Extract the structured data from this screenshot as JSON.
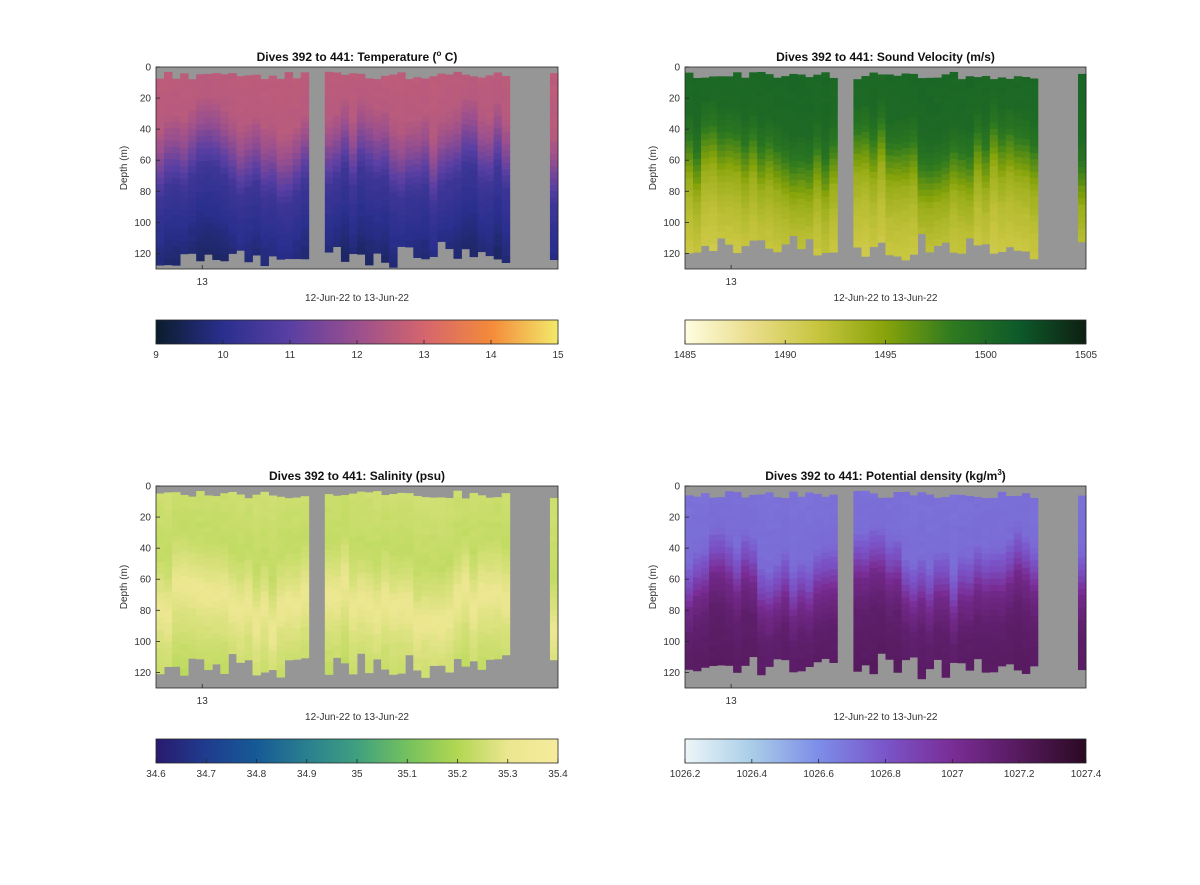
{
  "chart_data": [
    {
      "type": "heatmap",
      "title": "Dives 392 to 441: Temperature (",
      "title_sup": "o",
      "title_end": " C)",
      "xlabel": "12-Jun-22 to 13-Jun-22",
      "ylabel": "Depth (m)",
      "x_tick_labels": [
        "13"
      ],
      "y_ticks": [
        0,
        20,
        40,
        60,
        80,
        100,
        120
      ],
      "ylim": [
        0,
        130
      ],
      "colorbar": {
        "min": 9,
        "max": 15,
        "ticks": [
          "9",
          "10",
          "11",
          "12",
          "13",
          "14",
          "15"
        ],
        "colors": [
          "#0b1c2c",
          "#2a2f8e",
          "#5a3fa3",
          "#9a4f8e",
          "#d4656e",
          "#f48a3a",
          "#f2ea6a"
        ]
      },
      "gaps": [
        [
          0.3825,
          0.42
        ],
        [
          0.8825,
          0.98
        ]
      ],
      "surface_value": 12.6,
      "profile": [
        [
          0,
          12.6
        ],
        [
          30,
          12.5
        ],
        [
          45,
          12.0
        ],
        [
          60,
          11.2
        ],
        [
          75,
          10.4
        ],
        [
          95,
          10.1
        ],
        [
          130,
          9.6
        ]
      ],
      "bottom_depth": 120
    },
    {
      "type": "heatmap",
      "title": "Dives 392 to 441: Sound Velocity (m/s)",
      "title_sup": "",
      "title_end": "",
      "xlabel": "12-Jun-22 to 13-Jun-22",
      "ylabel": "Depth (m)",
      "x_tick_labels": [
        "13"
      ],
      "y_ticks": [
        0,
        20,
        40,
        60,
        80,
        100,
        120
      ],
      "ylim": [
        0,
        130
      ],
      "colorbar": {
        "min": 1485,
        "max": 1505,
        "ticks": [
          "1485",
          "1490",
          "1495",
          "1500",
          "1505"
        ],
        "colors": [
          "#fffde0",
          "#e9dd8a",
          "#c7c53e",
          "#86a30a",
          "#2f7a1f",
          "#0d5a2a",
          "#0e1f12"
        ]
      },
      "gaps": [
        [
          0.3825,
          0.42
        ],
        [
          0.8825,
          0.98
        ]
      ],
      "surface_value": 1500.3,
      "profile": [
        [
          0,
          1500.3
        ],
        [
          30,
          1500.1
        ],
        [
          45,
          1499.0
        ],
        [
          60,
          1496.5
        ],
        [
          75,
          1494.0
        ],
        [
          95,
          1492.5
        ],
        [
          130,
          1491.0
        ]
      ],
      "bottom_depth": 115
    },
    {
      "type": "heatmap",
      "title": "Dives 392 to 441: Salinity (psu)",
      "title_sup": "",
      "title_end": "",
      "xlabel": "12-Jun-22 to 13-Jun-22",
      "ylabel": "Depth (m)",
      "x_tick_labels": [
        "13"
      ],
      "y_ticks": [
        0,
        20,
        40,
        60,
        80,
        100,
        120
      ],
      "ylim": [
        0,
        130
      ],
      "colorbar": {
        "min": 34.6,
        "max": 35.4,
        "ticks": [
          "34.6",
          "34.7",
          "34.8",
          "34.9",
          "35",
          "35.1",
          "35.2",
          "35.3",
          "35.4"
        ],
        "colors": [
          "#2a1a6e",
          "#1f3c8e",
          "#165a96",
          "#2a7f8f",
          "#3fa07f",
          "#74c15e",
          "#b2d752",
          "#ebe690",
          "#f6ec9c"
        ]
      },
      "gaps": [
        [
          0.3825,
          0.42
        ],
        [
          0.8825,
          0.98
        ]
      ],
      "surface_value": 35.25,
      "profile": [
        [
          0,
          35.25
        ],
        [
          40,
          35.23
        ],
        [
          55,
          35.26
        ],
        [
          75,
          35.31
        ],
        [
          95,
          35.27
        ],
        [
          130,
          35.22
        ]
      ],
      "bottom_depth": 115
    },
    {
      "type": "heatmap",
      "title": "Dives 392 to 441: Potential density (kg/m",
      "title_sup": "3",
      "title_end": ")",
      "xlabel": "12-Jun-22 to 13-Jun-22",
      "ylabel": "Depth (m)",
      "x_tick_labels": [
        "13"
      ],
      "y_ticks": [
        0,
        20,
        40,
        60,
        80,
        100,
        120
      ],
      "ylim": [
        0,
        130
      ],
      "colorbar": {
        "min": 1026.2,
        "max": 1027.4,
        "ticks": [
          "1026.2",
          "1026.4",
          "1026.6",
          "1026.8",
          "1027",
          "1027.2",
          "1027.4"
        ],
        "colors": [
          "#edf6f8",
          "#a9cde8",
          "#7d8de8",
          "#7a55c9",
          "#7a2d96",
          "#561a5e",
          "#2a0a22"
        ]
      },
      "gaps": [
        [
          0.3825,
          0.42
        ],
        [
          0.8825,
          0.98
        ]
      ],
      "surface_value": 1026.7,
      "profile": [
        [
          0,
          1026.7
        ],
        [
          40,
          1026.72
        ],
        [
          55,
          1026.85
        ],
        [
          70,
          1027.05
        ],
        [
          90,
          1027.15
        ],
        [
          130,
          1027.2
        ]
      ],
      "bottom_depth": 115
    }
  ]
}
